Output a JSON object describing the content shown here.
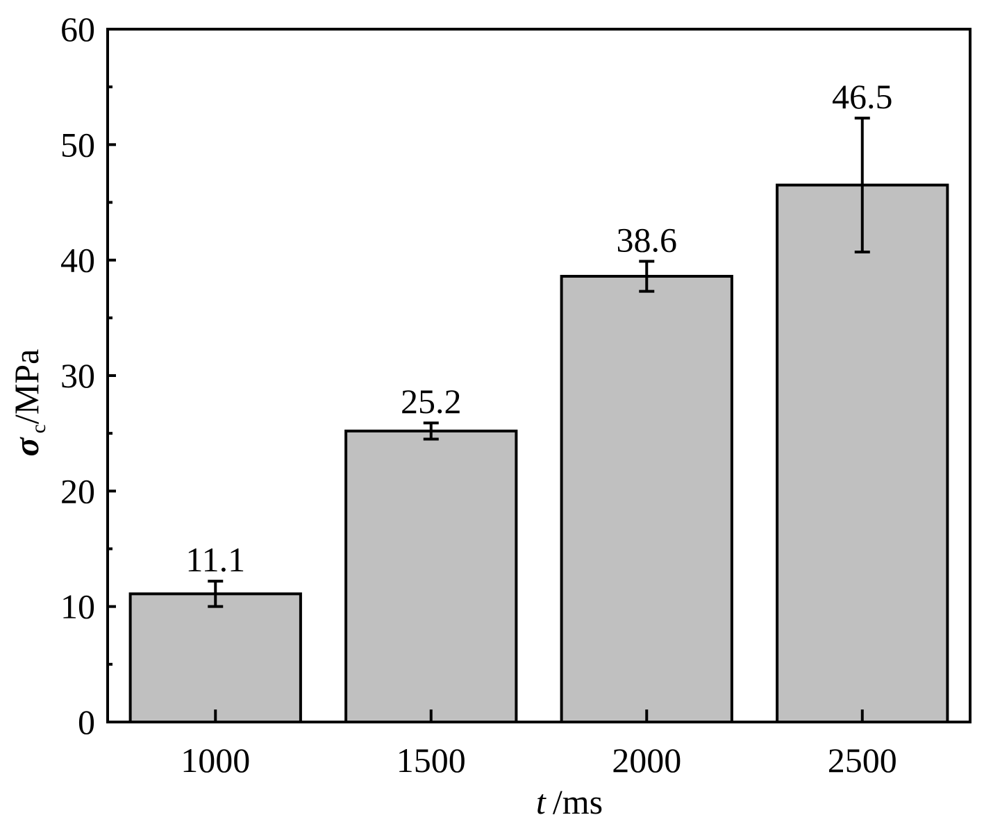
{
  "chart_data": {
    "type": "bar",
    "categories": [
      "1000",
      "1500",
      "2000",
      "2500"
    ],
    "values": [
      11.1,
      25.2,
      38.6,
      46.5
    ],
    "errors": [
      1.1,
      0.7,
      1.3,
      5.8
    ],
    "color": "#c0c0c0",
    "ylim": [
      0,
      60
    ],
    "yticks": [
      0,
      10,
      20,
      30,
      40,
      50,
      60
    ],
    "yminorticks": [
      5,
      15,
      25,
      35,
      45,
      55
    ],
    "x_label": {
      "symbol": "t",
      "unit": "/ms"
    },
    "y_label": {
      "symbol": "σ",
      "subscript": "c",
      "unit": "/MPa"
    },
    "grid": false
  }
}
